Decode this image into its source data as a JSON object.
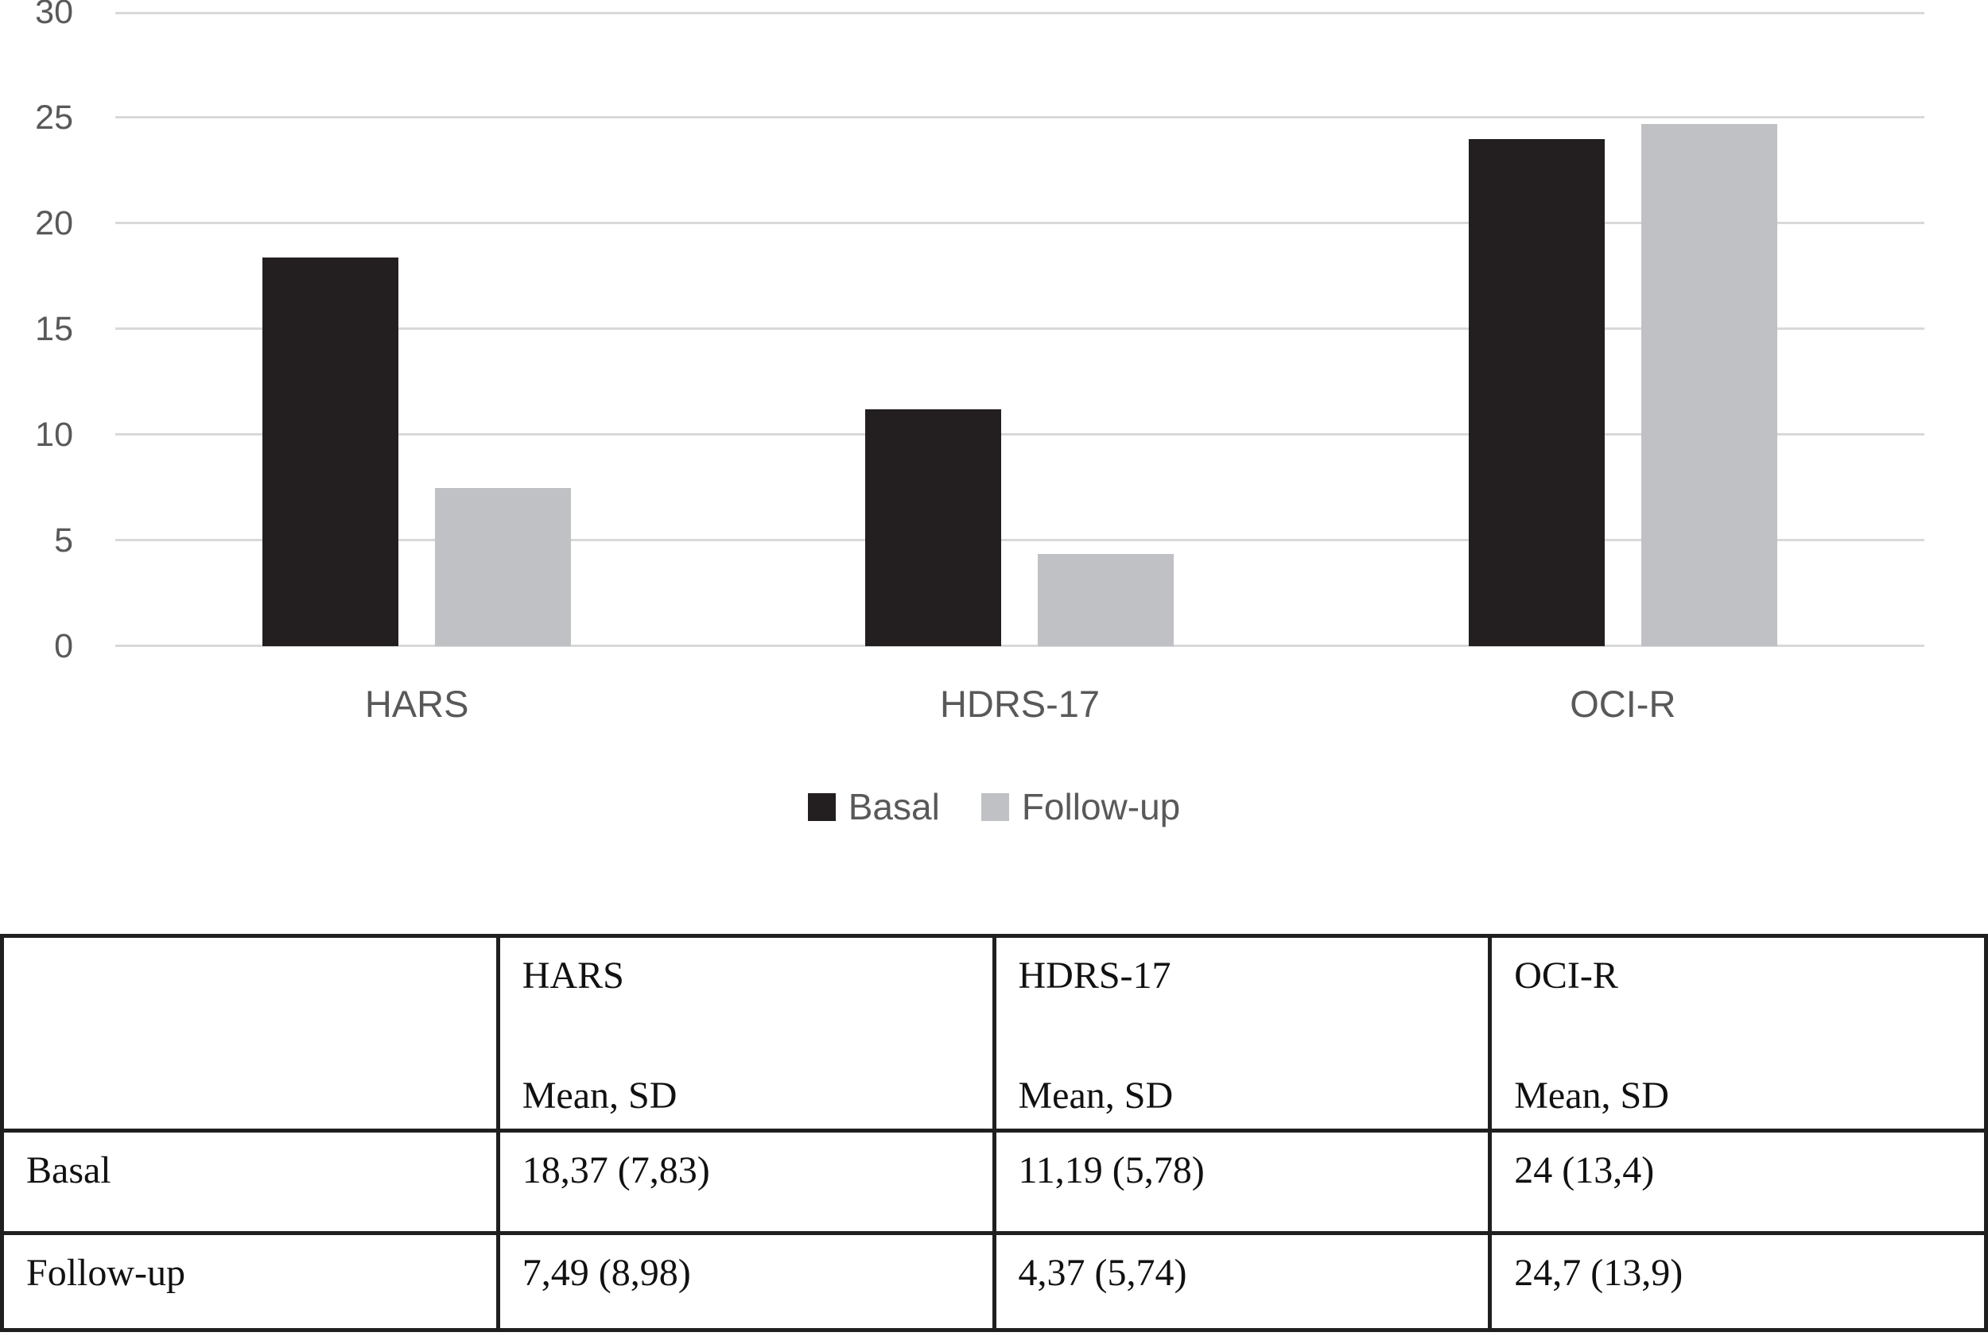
{
  "chart_data": {
    "type": "bar",
    "categories": [
      "HARS",
      "HDRS-17",
      "OCI-R"
    ],
    "series": [
      {
        "name": "Basal",
        "color": "#231f20",
        "values": [
          18.37,
          11.19,
          24.0
        ]
      },
      {
        "name": "Follow-up",
        "color": "#bfc1c4",
        "values": [
          7.49,
          4.37,
          24.7
        ]
      }
    ],
    "title": "",
    "xlabel": "",
    "ylabel": "",
    "ylim": [
      0,
      30
    ],
    "yticks": [
      0,
      5,
      10,
      15,
      20,
      25,
      30
    ],
    "grid": true,
    "legend_position": "bottom"
  },
  "colors": {
    "basal_bar": "#231f20",
    "followup_bar": "#bfc1c4",
    "gridline": "#d9d9d9",
    "chart_text": "#595959",
    "table_border": "#1f1f1f",
    "table_text": "#111111"
  },
  "table": {
    "columns": [
      {
        "title": "",
        "subtitle": ""
      },
      {
        "title": "HARS",
        "subtitle": "Mean, SD"
      },
      {
        "title": "HDRS-17",
        "subtitle": "Mean, SD"
      },
      {
        "title": "OCI-R",
        "subtitle": "Mean, SD"
      }
    ],
    "rows": [
      {
        "label": "Basal",
        "values": [
          "18,37 (7,83)",
          "11,19 (5,78)",
          "24 (13,4)"
        ]
      },
      {
        "label": "Follow-up",
        "values": [
          "7,49 (8,98)",
          "4,37 (5,74)",
          "24,7 (13,9)"
        ]
      }
    ]
  }
}
